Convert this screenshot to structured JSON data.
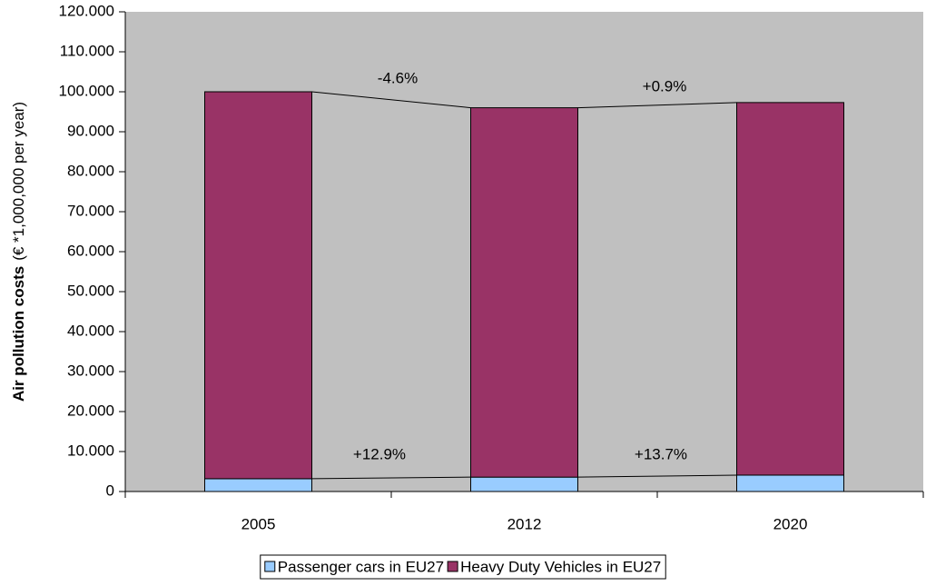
{
  "chart_data": {
    "type": "stacked_bar",
    "y_label": "Air pollution costs",
    "y_label_unit": "(€ *1,000,000 per year)",
    "categories": [
      "2005",
      "2012",
      "2020"
    ],
    "series": [
      {
        "name": "Passenger cars in EU27",
        "color": "#99ccff",
        "values": [
          3200,
          3600,
          4100
        ]
      },
      {
        "name": "Heavy Duty Vehicles in EU27",
        "color": "#993366",
        "values": [
          96800,
          92400,
          93200
        ]
      }
    ],
    "annotations": [
      "-4.6%",
      "+0.9%",
      "+12.9%",
      "+13.7%"
    ],
    "ylim": [
      0,
      120000
    ],
    "yticks": [
      0,
      {
        "value": 10000,
        "label": "10.000"
      },
      {
        "value": 20000,
        "label": "20.000"
      },
      {
        "value": 30000,
        "label": "30.000"
      },
      {
        "value": 40000,
        "label": "40.000"
      },
      {
        "value": 50000,
        "label": "50.000"
      },
      {
        "value": 60000,
        "label": "60.000"
      },
      {
        "value": 70000,
        "label": "70.000"
      },
      {
        "value": 80000,
        "label": "80.000"
      },
      {
        "value": 90000,
        "label": "90.000"
      },
      {
        "value": 100000,
        "label": "100.000"
      },
      {
        "value": 110000,
        "label": "110.000"
      },
      {
        "value": 120000,
        "label": "120.000"
      }
    ],
    "legend": "bottom",
    "plot_background": "#c0c0c0"
  }
}
